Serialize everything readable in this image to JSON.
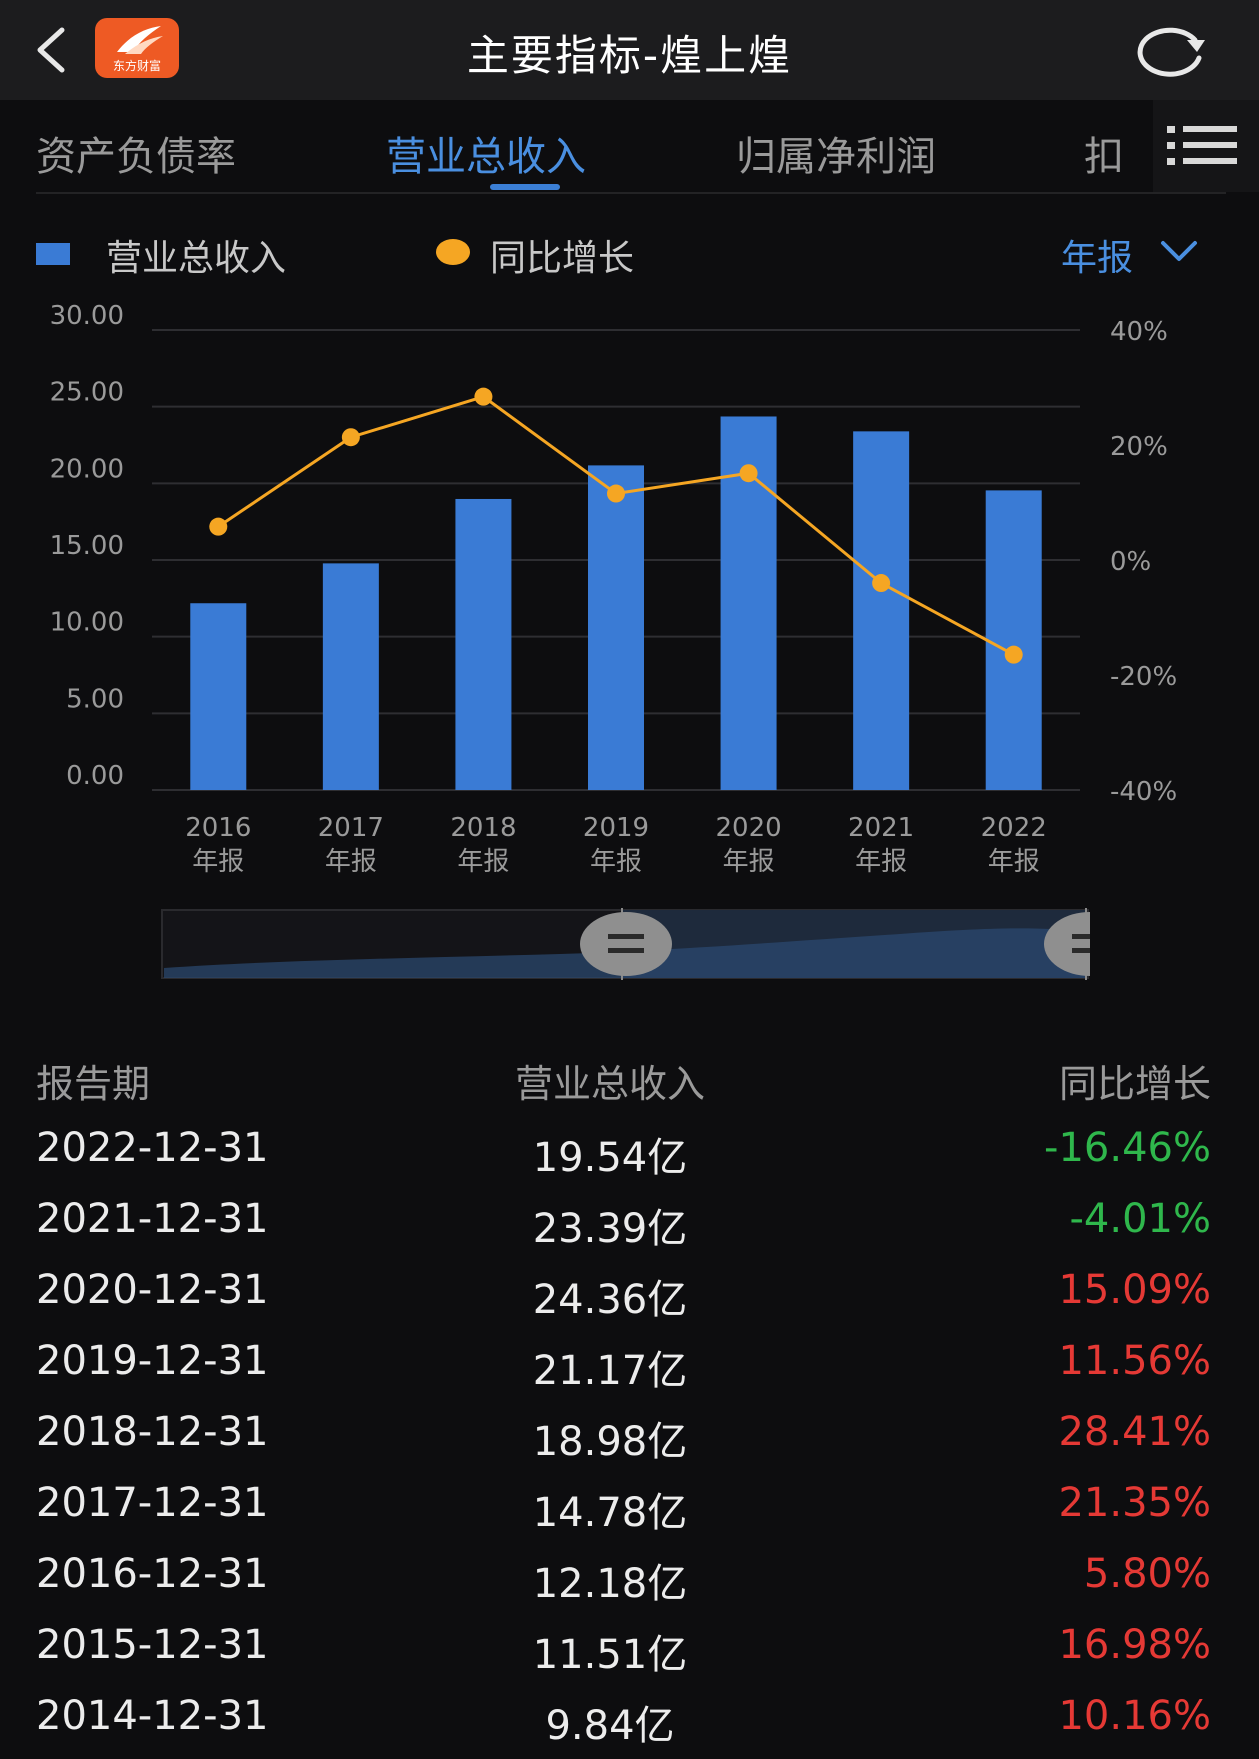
{
  "header": {
    "title": "主要指标-煌上煌",
    "app_logo_text": "东方财富"
  },
  "tabs": [
    {
      "label": "资产负债率",
      "active": false
    },
    {
      "label": "营业总收入",
      "active": true
    },
    {
      "label": "归属净利润",
      "active": false
    },
    {
      "label": "扣",
      "active": false
    }
  ],
  "legend": {
    "revenue_label": "营业总收入",
    "growth_label": "同比增长",
    "period": "年报"
  },
  "colors": {
    "bar": "#3a7bd5",
    "line": "#f5a623",
    "accent": "#4a8fe0",
    "up": "#e53935",
    "down": "#2fb74c"
  },
  "chart_data": {
    "type": "bar",
    "categories": [
      "2016",
      "2017",
      "2018",
      "2019",
      "2020",
      "2021",
      "2022"
    ],
    "category_sublabel": "年报",
    "series": [
      {
        "name": "营业总收入",
        "type": "bar",
        "axis": "left",
        "values": [
          12.18,
          14.78,
          18.98,
          21.17,
          24.36,
          23.39,
          19.54
        ]
      },
      {
        "name": "同比增长",
        "type": "line",
        "axis": "right",
        "values": [
          5.8,
          21.35,
          28.41,
          11.56,
          15.09,
          -4.01,
          -16.46
        ]
      }
    ],
    "left_axis": {
      "ylim": [
        0,
        30
      ],
      "ticks": [
        "0.00",
        "5.00",
        "10.00",
        "15.00",
        "20.00",
        "25.00",
        "30.00"
      ]
    },
    "right_axis": {
      "ylim": [
        -40,
        40
      ],
      "ticks": [
        "-40%",
        "-20%",
        "0%",
        "20%",
        "40%"
      ]
    },
    "grid": true,
    "legend_position": "top-left"
  },
  "table": {
    "headers": {
      "period": "报告期",
      "revenue": "营业总收入",
      "growth": "同比增长"
    },
    "rows": [
      {
        "period": "2022-12-31",
        "revenue": "19.54亿",
        "growth": "-16.46%",
        "trend": "down"
      },
      {
        "period": "2021-12-31",
        "revenue": "23.39亿",
        "growth": "-4.01%",
        "trend": "down"
      },
      {
        "period": "2020-12-31",
        "revenue": "24.36亿",
        "growth": "15.09%",
        "trend": "up"
      },
      {
        "period": "2019-12-31",
        "revenue": "21.17亿",
        "growth": "11.56%",
        "trend": "up"
      },
      {
        "period": "2018-12-31",
        "revenue": "18.98亿",
        "growth": "28.41%",
        "trend": "up"
      },
      {
        "period": "2017-12-31",
        "revenue": "14.78亿",
        "growth": "21.35%",
        "trend": "up"
      },
      {
        "period": "2016-12-31",
        "revenue": "12.18亿",
        "growth": "5.80%",
        "trend": "up"
      },
      {
        "period": "2015-12-31",
        "revenue": "11.51亿",
        "growth": "16.98%",
        "trend": "up"
      },
      {
        "period": "2014-12-31",
        "revenue": "9.84亿",
        "growth": "10.16%",
        "trend": "up"
      }
    ]
  }
}
